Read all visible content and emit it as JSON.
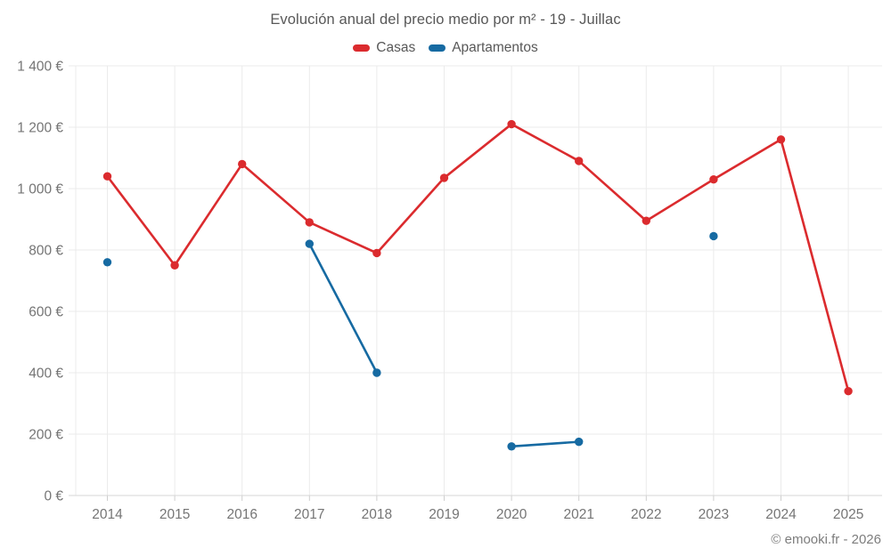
{
  "chart_data": {
    "type": "line",
    "title": "Evolución anual del precio medio por m² - 19 - Juillac",
    "xlabel": "",
    "ylabel": "",
    "categories": [
      "2014",
      "2015",
      "2016",
      "2017",
      "2018",
      "2019",
      "2020",
      "2021",
      "2022",
      "2023",
      "2024",
      "2025"
    ],
    "series": [
      {
        "name": "Casas",
        "color": "#db2b2e",
        "values": [
          1040,
          750,
          1080,
          890,
          790,
          1035,
          1210,
          1090,
          895,
          1030,
          1160,
          340
        ]
      },
      {
        "name": "Apartamentos",
        "color": "#166aa2",
        "values": [
          760,
          null,
          null,
          820,
          400,
          null,
          160,
          175,
          null,
          845,
          null,
          null
        ]
      }
    ],
    "ylim": [
      0,
      1400
    ],
    "ytick_step": 200,
    "ytick_suffix": " €",
    "grid": true,
    "legend_position": "top",
    "copyright": "© emooki.fr - 2026"
  }
}
